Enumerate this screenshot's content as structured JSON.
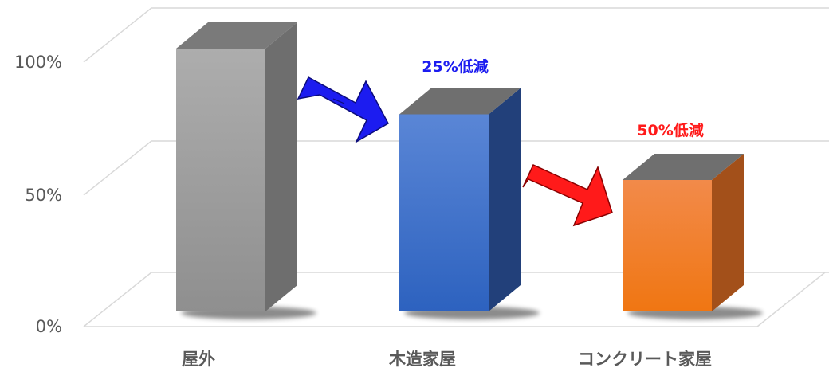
{
  "chart_data": {
    "type": "bar",
    "categories": [
      "屋外",
      "木造家屋",
      "コンクリート家屋"
    ],
    "values": [
      100,
      75,
      50
    ],
    "ylim": [
      0,
      100
    ],
    "yticks": [
      "0%",
      "50%",
      "100%"
    ],
    "grid": true,
    "colors": [
      "#9e9e9e",
      "#3a6fc8",
      "#f07a22"
    ],
    "annotations": [
      {
        "text": "25%低減",
        "color": "#1c1cf0",
        "arrow_color": "#1c1cf0"
      },
      {
        "text": "50%低減",
        "color": "#ff1a1a",
        "arrow_color": "#ff1a1a"
      }
    ]
  }
}
